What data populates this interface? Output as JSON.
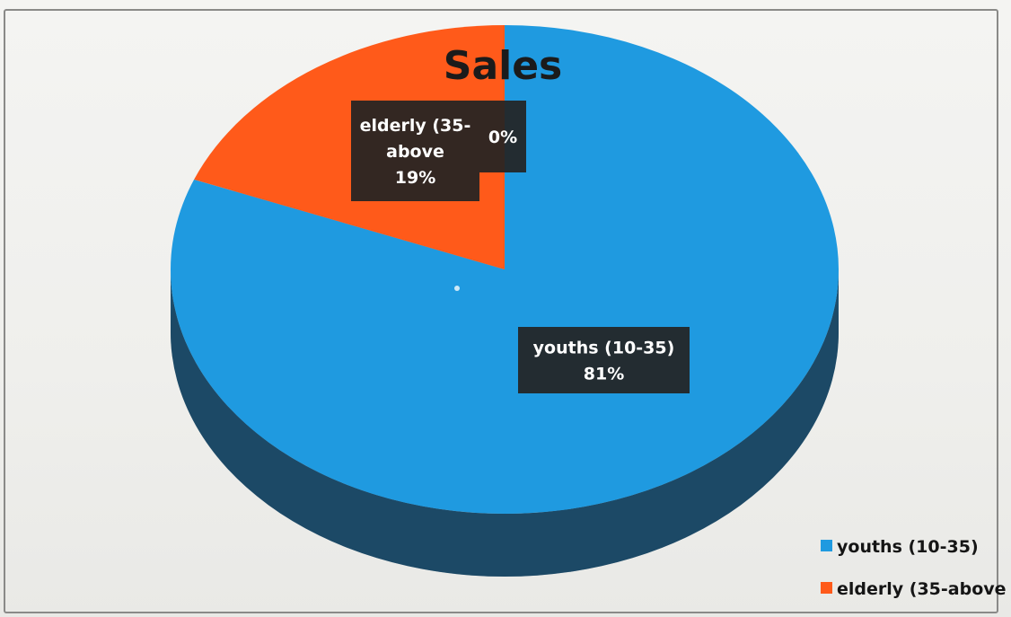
{
  "chart_data": {
    "type": "pie",
    "title": "Sales",
    "slices": [
      {
        "label": "youths (10-35)",
        "value": 81,
        "label_lines": [
          "youths (10-35)",
          "81%"
        ],
        "color": "#1f9ae0"
      },
      {
        "label": "elderly (35-above",
        "value": 19,
        "label_lines": [
          "elderly (35-",
          "above",
          "19%"
        ],
        "color": "#ff5a1a"
      },
      {
        "label": "",
        "value": 0,
        "label_lines": [
          "0%"
        ],
        "color": "#1f9ae0"
      }
    ],
    "legend": {
      "position": "bottom-right",
      "entries": [
        {
          "label": "youths (10-35)",
          "color": "#1f9ae0"
        },
        {
          "label": "elderly (35-above",
          "color": "#ff5a1a"
        }
      ]
    },
    "style": "3d-pie",
    "data_labels": "dark-boxes"
  }
}
